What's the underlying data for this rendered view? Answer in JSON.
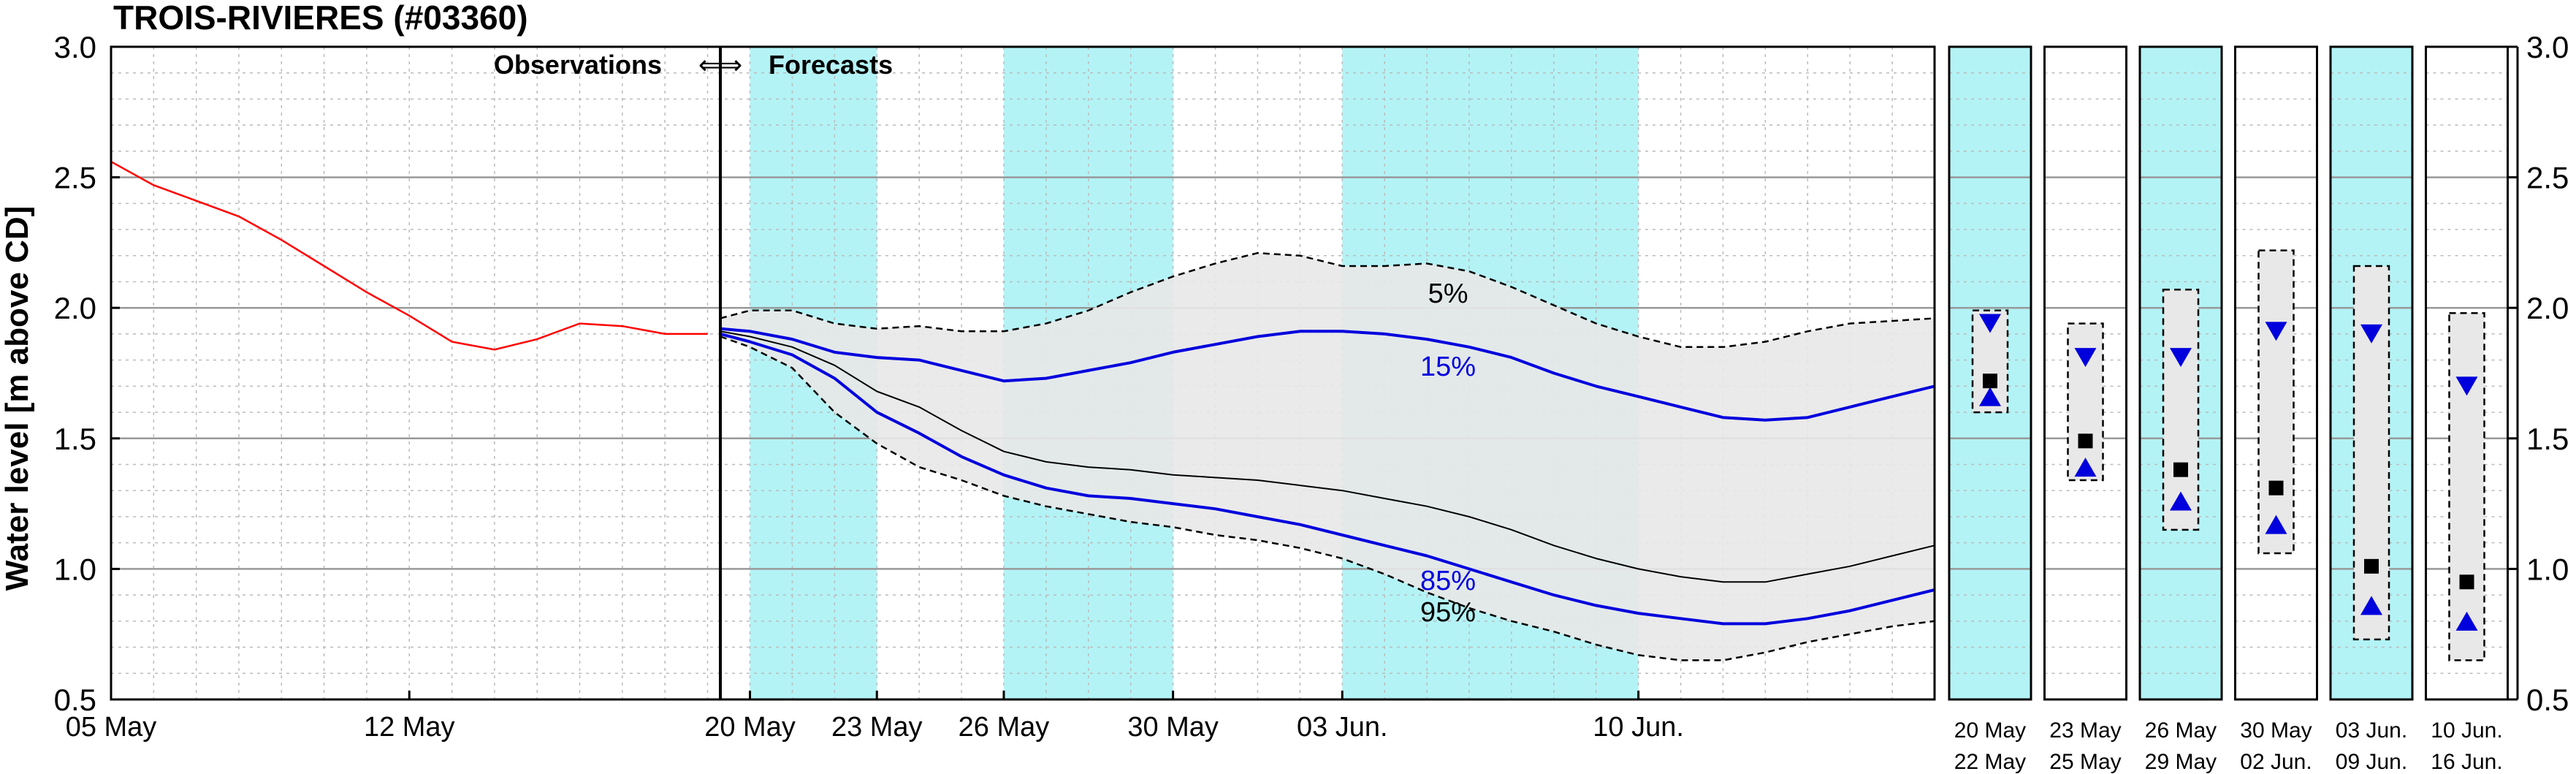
{
  "chart_data": {
    "type": "line",
    "title": "TROIS-RIVIERES (#03360)",
    "ylabel": "Water level [m above CD]",
    "ylim": [
      0.5,
      3.0
    ],
    "yticks": [
      "0.5",
      "1.0",
      "1.5",
      "2.0",
      "2.5",
      "3.0"
    ],
    "grid": true,
    "obs_label": "Observations",
    "arrows_label": "⇐⇒",
    "fc_label": "Forecasts",
    "xlim_days": [
      5,
      48
    ],
    "obs_xlim_days": [
      5,
      19.3
    ],
    "fc_xlim_days": [
      19.3,
      48
    ],
    "xticks_obs": [
      {
        "label": "05 May",
        "day": 5
      },
      {
        "label": "12 May",
        "day": 12
      }
    ],
    "xticks_fc": [
      {
        "label": "20 May",
        "day": 20
      },
      {
        "label": "23 May",
        "day": 23
      },
      {
        "label": "26 May",
        "day": 26
      },
      {
        "label": "30 May",
        "day": 30
      },
      {
        "label": "03 Jun.",
        "day": 34
      },
      {
        "label": "10 Jun.",
        "day": 41
      }
    ],
    "shaded_bands_days": [
      [
        20,
        23
      ],
      [
        26,
        30
      ],
      [
        34,
        41
      ]
    ],
    "observations": {
      "color": "#ff0000",
      "x": [
        5,
        6,
        7,
        8,
        9,
        10,
        11,
        12,
        13,
        14,
        15,
        16,
        17,
        18,
        19
      ],
      "y": [
        2.56,
        2.47,
        2.41,
        2.35,
        2.26,
        2.16,
        2.06,
        1.97,
        1.87,
        1.84,
        1.88,
        1.94,
        1.93,
        1.9,
        1.9
      ]
    },
    "band": {
      "name_top": "5%",
      "name_bottom": "95%",
      "x": [
        19.3,
        20,
        21,
        22,
        23,
        24,
        25,
        26,
        27,
        28,
        29,
        30,
        31,
        32,
        33,
        34,
        35,
        36,
        37,
        38,
        39,
        40,
        41,
        42,
        43,
        44,
        45,
        46,
        47,
        48
      ],
      "upper": [
        1.96,
        1.99,
        1.99,
        1.94,
        1.92,
        1.93,
        1.91,
        1.91,
        1.94,
        1.99,
        2.06,
        2.12,
        2.17,
        2.21,
        2.2,
        2.16,
        2.16,
        2.17,
        2.14,
        2.08,
        2.01,
        1.94,
        1.89,
        1.85,
        1.85,
        1.87,
        1.91,
        1.94,
        1.95,
        1.96
      ],
      "lower": [
        1.89,
        1.85,
        1.77,
        1.6,
        1.48,
        1.39,
        1.34,
        1.28,
        1.24,
        1.21,
        1.18,
        1.16,
        1.13,
        1.11,
        1.08,
        1.04,
        0.98,
        0.91,
        0.85,
        0.8,
        0.76,
        0.71,
        0.67,
        0.65,
        0.65,
        0.68,
        0.72,
        0.75,
        0.78,
        0.8
      ]
    },
    "series": [
      {
        "name": "15%",
        "color": "#0000dd",
        "width": 4,
        "y": [
          1.92,
          1.91,
          1.88,
          1.83,
          1.81,
          1.8,
          1.76,
          1.72,
          1.73,
          1.76,
          1.79,
          1.83,
          1.86,
          1.89,
          1.91,
          1.91,
          1.9,
          1.88,
          1.85,
          1.81,
          1.75,
          1.7,
          1.66,
          1.62,
          1.58,
          1.57,
          1.58,
          1.62,
          1.66,
          1.7
        ]
      },
      {
        "name": "",
        "color": "#000000",
        "width": 2,
        "y": [
          1.91,
          1.89,
          1.85,
          1.78,
          1.68,
          1.62,
          1.53,
          1.45,
          1.41,
          1.39,
          1.38,
          1.36,
          1.35,
          1.34,
          1.32,
          1.3,
          1.27,
          1.24,
          1.2,
          1.15,
          1.09,
          1.04,
          1.0,
          0.97,
          0.95,
          0.95,
          0.98,
          1.01,
          1.05,
          1.09
        ]
      },
      {
        "name": "85%",
        "color": "#0000dd",
        "width": 4,
        "y": [
          1.9,
          1.87,
          1.82,
          1.73,
          1.6,
          1.52,
          1.43,
          1.36,
          1.31,
          1.28,
          1.27,
          1.25,
          1.23,
          1.2,
          1.17,
          1.13,
          1.09,
          1.05,
          1.0,
          0.95,
          0.9,
          0.86,
          0.83,
          0.81,
          0.79,
          0.79,
          0.81,
          0.84,
          0.88,
          0.92
        ]
      }
    ],
    "band_labels": [
      {
        "text": "5%",
        "color": "#000000",
        "day": 36.5,
        "y": 2.02
      },
      {
        "text": "15%",
        "color": "#0000dd",
        "day": 36.5,
        "y": 1.74
      },
      {
        "text": "85%",
        "color": "#0000dd",
        "day": 36.5,
        "y": 0.92
      },
      {
        "text": "95%",
        "color": "#000000",
        "day": 36.5,
        "y": 0.8
      }
    ],
    "weekly_panels": [
      {
        "top": "20  May",
        "bottom": "22  May",
        "shaded": true,
        "box": [
          1.6,
          1.99
        ],
        "square": 1.72,
        "tri_down": 1.94,
        "tri_up": 1.66
      },
      {
        "top": "23  May",
        "bottom": "25  May",
        "shaded": false,
        "box": [
          1.34,
          1.94
        ],
        "square": 1.49,
        "tri_down": 1.81,
        "tri_up": 1.39
      },
      {
        "top": "26  May",
        "bottom": "29  May",
        "shaded": true,
        "box": [
          1.15,
          2.07
        ],
        "square": 1.38,
        "tri_down": 1.81,
        "tri_up": 1.26
      },
      {
        "top": "30  May",
        "bottom": "02  Jun.",
        "shaded": false,
        "box": [
          1.06,
          2.22
        ],
        "square": 1.31,
        "tri_down": 1.91,
        "tri_up": 1.17
      },
      {
        "top": "03  Jun.",
        "bottom": "09  Jun.",
        "shaded": true,
        "box": [
          0.73,
          2.16
        ],
        "square": 1.01,
        "tri_down": 1.9,
        "tri_up": 0.86
      },
      {
        "top": "10  Jun.",
        "bottom": "16  Jun.",
        "shaded": false,
        "box": [
          0.65,
          1.98
        ],
        "square": 0.95,
        "tri_down": 1.7,
        "tri_up": 0.8
      }
    ],
    "colors": {
      "band_fill": "#e8e8e8",
      "shade": "#b3f3f6",
      "grid_major": "#999999",
      "grid_minor": "#bbbbbb"
    }
  }
}
